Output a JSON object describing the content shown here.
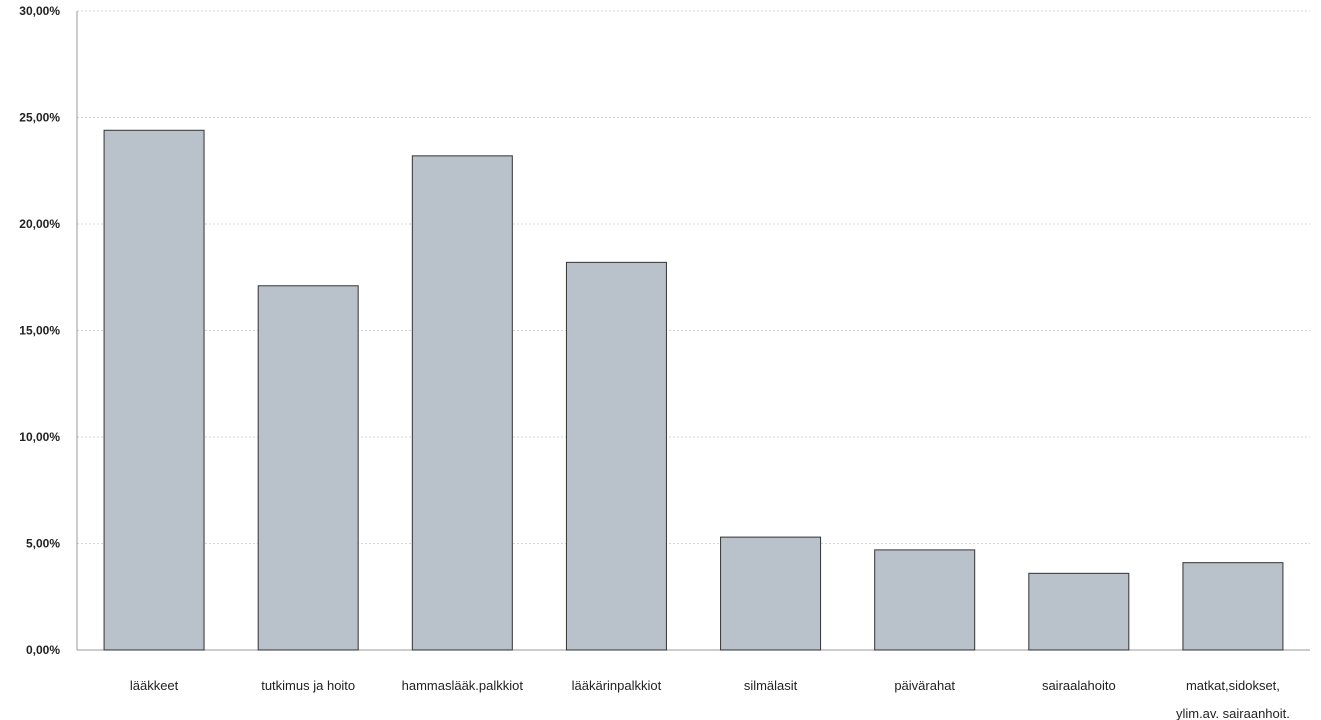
{
  "chart_data": {
    "type": "bar",
    "title": "",
    "xlabel": "",
    "ylabel": "",
    "ylim": [
      0,
      30
    ],
    "grid": true,
    "bar_color": "#b9c1cb",
    "yticks": [
      {
        "value": 0,
        "label": "0,00%"
      },
      {
        "value": 5,
        "label": "5,00%"
      },
      {
        "value": 10,
        "label": "10,00%"
      },
      {
        "value": 15,
        "label": "15,00%"
      },
      {
        "value": 20,
        "label": "20,00%"
      },
      {
        "value": 25,
        "label": "25,00%"
      },
      {
        "value": 30,
        "label": "30,00%"
      }
    ],
    "categories": [
      [
        "lääkkeet"
      ],
      [
        "tutkimus ja hoito"
      ],
      [
        "hammaslääk.palkkiot"
      ],
      [
        "lääkärinpalkkiot"
      ],
      [
        "silmälasit"
      ],
      [
        "päivärahat"
      ],
      [
        "sairaalahoito"
      ],
      [
        "matkat,sidokset,",
        "ylim.av. sairaanhoit."
      ]
    ],
    "values": [
      24.4,
      17.1,
      23.2,
      18.2,
      5.3,
      4.7,
      3.6,
      4.1
    ]
  }
}
